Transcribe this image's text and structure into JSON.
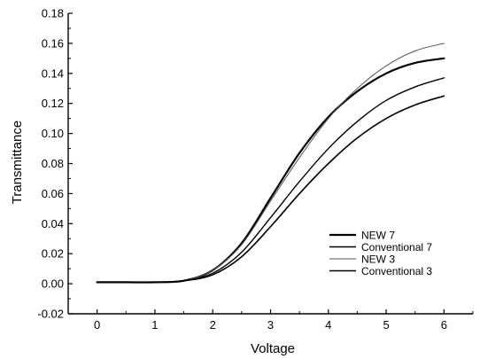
{
  "chart_data": {
    "type": "line",
    "title": "",
    "xlabel": "Voltage",
    "ylabel": "Transmittance",
    "xlim": [
      -0.5,
      6.5
    ],
    "ylim": [
      -0.02,
      0.18
    ],
    "xticks": [
      "0",
      "1",
      "2",
      "3",
      "4",
      "5",
      "6"
    ],
    "yticks": [
      "-0.02",
      "0.00",
      "0.02",
      "0.04",
      "0.06",
      "0.08",
      "0.10",
      "0.12",
      "0.14",
      "0.16",
      "0.18"
    ],
    "grid": false,
    "legend_position": "bottom-right",
    "x": [
      0,
      0.5,
      1,
      1.5,
      2,
      2.5,
      3,
      3.5,
      4,
      4.5,
      5,
      5.5,
      6
    ],
    "series": [
      {
        "name": "NEW 7",
        "color": "#000000",
        "values": [
          0.001,
          0.001,
          0.001,
          0.002,
          0.009,
          0.027,
          0.057,
          0.087,
          0.111,
          0.128,
          0.14,
          0.147,
          0.15
        ]
      },
      {
        "name": "Conventional 7",
        "color": "#000000",
        "values": [
          0.001,
          0.001,
          0.001,
          0.002,
          0.007,
          0.021,
          0.044,
          0.068,
          0.09,
          0.108,
          0.122,
          0.131,
          0.137
        ]
      },
      {
        "name": "NEW 3",
        "color": "#555555",
        "values": [
          0.001,
          0.001,
          0.001,
          0.002,
          0.009,
          0.026,
          0.055,
          0.084,
          0.11,
          0.13,
          0.145,
          0.155,
          0.16
        ]
      },
      {
        "name": "Conventional 3",
        "color": "#000000",
        "values": [
          0.001,
          0.001,
          0.001,
          0.002,
          0.006,
          0.018,
          0.038,
          0.06,
          0.08,
          0.097,
          0.11,
          0.119,
          0.125
        ]
      }
    ]
  }
}
